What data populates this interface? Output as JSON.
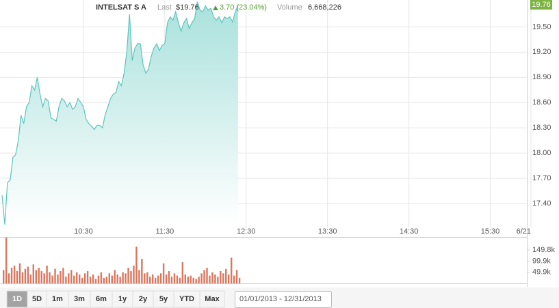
{
  "header": {
    "name": "INTELSAT S A",
    "last_label": "Last",
    "last_value": "$19.76",
    "change": "3.70 (23.04%)",
    "volume_label": "Volume",
    "volume_value": "6,668,226",
    "last_tag": "19.76"
  },
  "chart_data": [
    {
      "type": "line",
      "color": "#5bc5bd",
      "area": true,
      "grid": true,
      "x": [
        0,
        2,
        4,
        6,
        8,
        10,
        12,
        14,
        16,
        18,
        20,
        22,
        24,
        26,
        28,
        30,
        32,
        34,
        36,
        38,
        40,
        42,
        44,
        46,
        48,
        50,
        52,
        54,
        56,
        58,
        60,
        62,
        64,
        66,
        68,
        70,
        72,
        74,
        76,
        78,
        80,
        82,
        84,
        86,
        88,
        90,
        92,
        94,
        96,
        98,
        100,
        102,
        104,
        106,
        108,
        110,
        112,
        114,
        116,
        118,
        120,
        122,
        124,
        126,
        128,
        130,
        132,
        134,
        136,
        138,
        140,
        142,
        144,
        146,
        148,
        150,
        152,
        154,
        156,
        158,
        160,
        162,
        164,
        166,
        168,
        170,
        172,
        174
      ],
      "values": [
        17.5,
        17.15,
        17.65,
        17.68,
        17.95,
        17.98,
        18.15,
        18.45,
        18.35,
        18.55,
        18.6,
        18.8,
        18.75,
        18.9,
        18.7,
        18.55,
        18.65,
        18.62,
        18.42,
        18.4,
        18.38,
        18.55,
        18.65,
        18.62,
        18.55,
        18.6,
        18.52,
        18.55,
        18.65,
        18.6,
        18.55,
        18.4,
        18.35,
        18.32,
        18.28,
        18.33,
        18.33,
        18.3,
        18.45,
        18.55,
        18.65,
        18.7,
        18.72,
        18.85,
        18.8,
        18.95,
        19.2,
        19.65,
        19.1,
        19.25,
        19.3,
        19.3,
        19.05,
        18.95,
        19.0,
        19.15,
        19.25,
        19.3,
        19.22,
        19.28,
        19.3,
        19.55,
        19.62,
        19.58,
        19.68,
        19.55,
        19.45,
        19.55,
        19.6,
        19.48,
        19.55,
        19.6,
        19.8,
        19.7,
        19.68,
        19.75,
        19.7,
        19.72,
        19.62,
        19.58,
        19.62,
        19.55,
        19.62,
        19.6,
        19.62,
        19.56,
        19.68,
        19.76
      ],
      "xlim": [
        0,
        390
      ],
      "xticks": [
        {
          "value": 60,
          "label": "10:30"
        },
        {
          "value": 120,
          "label": "11:30"
        },
        {
          "value": 180,
          "label": "12:30"
        },
        {
          "value": 240,
          "label": "13:30"
        },
        {
          "value": 300,
          "label": "14:30"
        },
        {
          "value": 360,
          "label": "15:30"
        },
        {
          "value": 390,
          "label": "6/21"
        }
      ],
      "ylim": [
        17.14,
        19.82
      ],
      "yticks": [
        {
          "value": 17.4,
          "label": "17.40"
        },
        {
          "value": 17.7,
          "label": "17.70"
        },
        {
          "value": 18.0,
          "label": "18.00"
        },
        {
          "value": 18.3,
          "label": "18.30"
        },
        {
          "value": 18.6,
          "label": "18.60"
        },
        {
          "value": 18.9,
          "label": "18.90"
        },
        {
          "value": 19.2,
          "label": "19.20"
        },
        {
          "value": 19.5,
          "label": "19.50"
        }
      ]
    },
    {
      "type": "bar",
      "color": "#d9765e",
      "x": [
        0,
        2,
        4,
        6,
        8,
        10,
        12,
        14,
        16,
        18,
        20,
        22,
        24,
        26,
        28,
        30,
        32,
        34,
        36,
        38,
        40,
        42,
        44,
        46,
        48,
        50,
        52,
        54,
        56,
        58,
        60,
        62,
        64,
        66,
        68,
        70,
        72,
        74,
        76,
        78,
        80,
        82,
        84,
        86,
        88,
        90,
        92,
        94,
        96,
        98,
        100,
        102,
        104,
        106,
        108,
        110,
        112,
        114,
        116,
        118,
        120,
        122,
        124,
        126,
        128,
        130,
        132,
        134,
        136,
        138,
        140,
        142,
        144,
        146,
        148,
        150,
        152,
        154,
        156,
        158,
        160,
        162,
        164,
        166,
        168,
        170,
        172,
        174
      ],
      "values": [
        60000,
        205000,
        45000,
        70000,
        80000,
        55000,
        90000,
        50000,
        65000,
        75000,
        40000,
        85000,
        60000,
        70000,
        55000,
        45000,
        80000,
        50000,
        35000,
        65000,
        40000,
        55000,
        70000,
        30000,
        45000,
        60000,
        35000,
        50000,
        40000,
        25000,
        45000,
        55000,
        30000,
        40000,
        20000,
        35000,
        50000,
        25000,
        30000,
        45000,
        35000,
        60000,
        40000,
        30000,
        50000,
        45000,
        70000,
        55000,
        80000,
        165000,
        60000,
        110000,
        45000,
        50000,
        30000,
        40000,
        25000,
        35000,
        45000,
        90000,
        40000,
        55000,
        30000,
        45000,
        35000,
        25000,
        95000,
        40000,
        30000,
        35000,
        25000,
        20000,
        30000,
        45000,
        60000,
        70000,
        35000,
        50000,
        40000,
        30000,
        55000,
        45000,
        65000,
        40000,
        115000,
        35000,
        60000,
        25000
      ],
      "xlim": [
        0,
        390
      ],
      "ylim": [
        0,
        205000
      ],
      "yticks": [
        {
          "value": 49900,
          "label": "49.9k"
        },
        {
          "value": 99900,
          "label": "99.9k"
        },
        {
          "value": 149800,
          "label": "149.8k"
        }
      ]
    }
  ],
  "toolbar": {
    "ranges": [
      "1D",
      "5D",
      "1m",
      "3m",
      "6m",
      "1y",
      "2y",
      "5y",
      "YTD",
      "Max"
    ],
    "active": "1D",
    "date_range": "01/01/2013 - 12/31/2013"
  }
}
